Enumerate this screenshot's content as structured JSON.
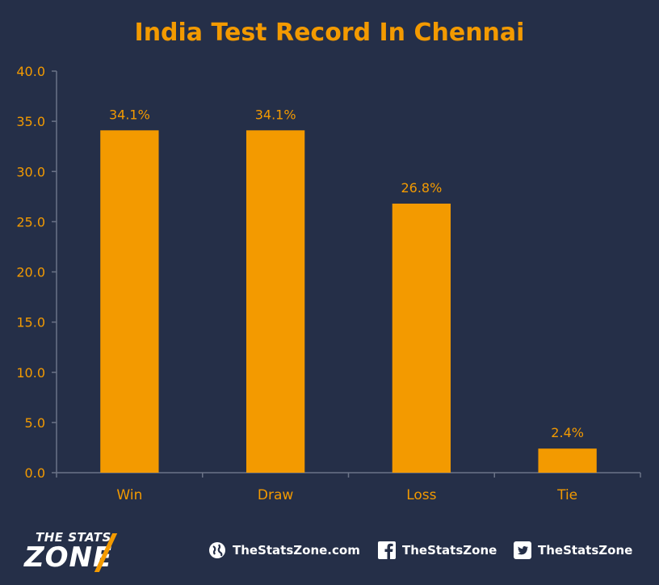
{
  "chart_data": {
    "type": "bar",
    "title": "India Test Record In Chennai",
    "categories": [
      "Win",
      "Draw",
      "Loss",
      "Tie"
    ],
    "values": [
      34.1,
      34.1,
      26.8,
      2.4
    ],
    "data_labels": [
      "34.1%",
      "34.1%",
      "26.8%",
      "2.4%"
    ],
    "ylim": [
      0,
      40
    ],
    "yticks": [
      "0.0",
      "5.0",
      "10.0",
      "15.0",
      "20.0",
      "25.0",
      "30.0",
      "35.0",
      "40.0"
    ],
    "grid": false,
    "legend": "none",
    "xlabel": "",
    "ylabel": "",
    "colors": {
      "bar": "#f39a00",
      "text": "#f39a00",
      "axis": "#6b7387",
      "background": "#252f48"
    }
  },
  "footer": {
    "logo_top": "THE STATS",
    "logo_bottom": "ZONE",
    "website": "TheStatsZone.com",
    "facebook": "TheStatsZone",
    "twitter": "TheStatsZone",
    "icons": [
      "globe-icon",
      "facebook-icon",
      "twitter-icon"
    ]
  }
}
